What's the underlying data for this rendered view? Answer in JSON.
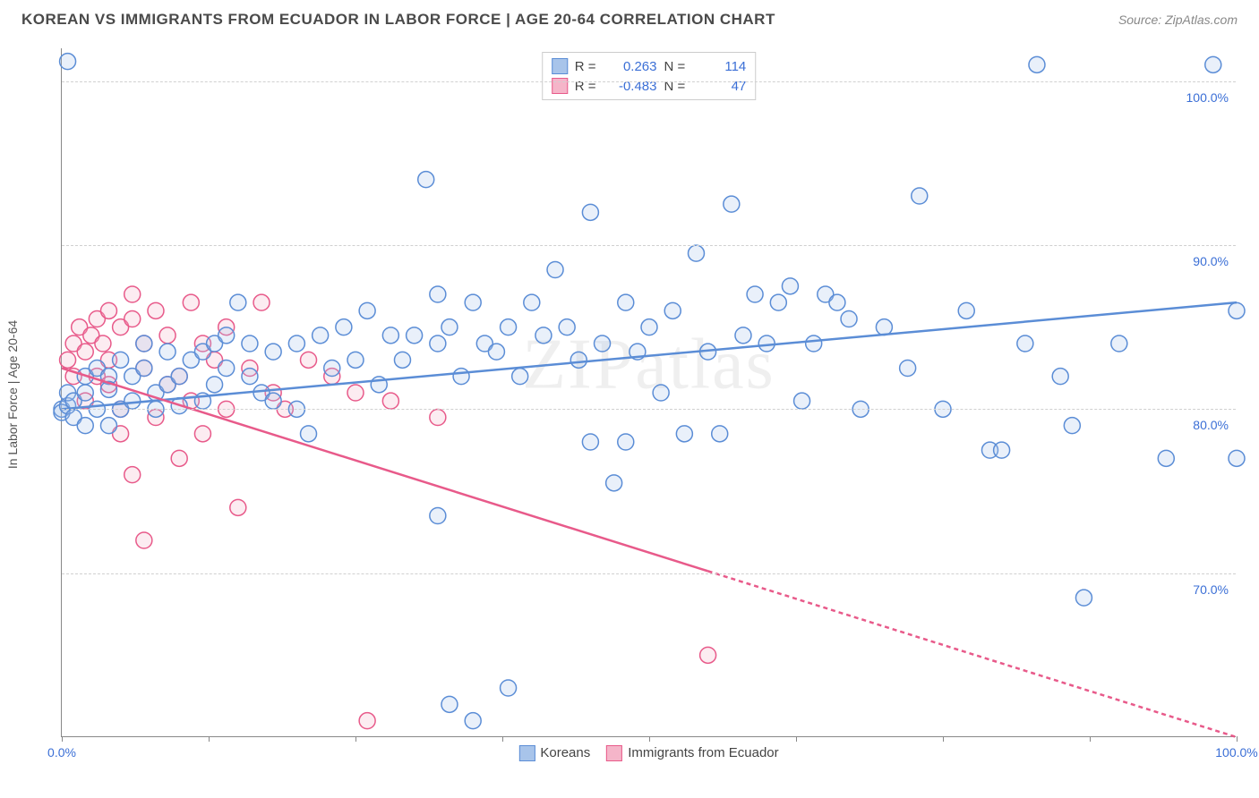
{
  "title": "KOREAN VS IMMIGRANTS FROM ECUADOR IN LABOR FORCE | AGE 20-64 CORRELATION CHART",
  "source": "Source: ZipAtlas.com",
  "watermark": "ZIPatlas",
  "ylabel": "In Labor Force | Age 20-64",
  "chart": {
    "type": "scatter",
    "background_color": "#ffffff",
    "grid_color": "#d0d0d0",
    "axis_color": "#888888",
    "xlim": [
      0,
      100
    ],
    "ylim": [
      60,
      102
    ],
    "xtick_positions": [
      0,
      12.5,
      25,
      37.5,
      50,
      62.5,
      75,
      87.5,
      100
    ],
    "xtick_labels": {
      "0": "0.0%",
      "100": "100.0%"
    },
    "ytick_positions": [
      70,
      80,
      90,
      100
    ],
    "ytick_labels": {
      "70": "70.0%",
      "80": "80.0%",
      "90": "90.0%",
      "100": "100.0%"
    },
    "label_color": "#3b6fd6",
    "label_fontsize": 14,
    "marker_radius": 9,
    "marker_stroke_width": 1.5,
    "marker_fill_opacity": 0.25,
    "trendline_width": 2.5,
    "trendline_dash_extrapolate": "5,4"
  },
  "series": {
    "korean": {
      "label": "Koreans",
      "color": "#5b8dd6",
      "fill": "#a8c4ea",
      "R": "0.263",
      "N": "114",
      "trend": {
        "x1": 0,
        "y1": 80.0,
        "x2": 100,
        "y2": 86.5
      },
      "points": [
        [
          0,
          80.0
        ],
        [
          0,
          79.8
        ],
        [
          0.5,
          80.2
        ],
        [
          0.5,
          81.0
        ],
        [
          0.5,
          101.2
        ],
        [
          1,
          79.5
        ],
        [
          1,
          80.5
        ],
        [
          2,
          81.0
        ],
        [
          2,
          79.0
        ],
        [
          2,
          82.0
        ],
        [
          3,
          82.5
        ],
        [
          3,
          80.0
        ],
        [
          4,
          82.0
        ],
        [
          4,
          81.2
        ],
        [
          4,
          79.0
        ],
        [
          5,
          80.0
        ],
        [
          5,
          83.0
        ],
        [
          6,
          80.5
        ],
        [
          6,
          82.0
        ],
        [
          7,
          82.5
        ],
        [
          7,
          84.0
        ],
        [
          8,
          81.0
        ],
        [
          8,
          80.0
        ],
        [
          9,
          81.5
        ],
        [
          9,
          83.5
        ],
        [
          10,
          80.2
        ],
        [
          10,
          82.0
        ],
        [
          11,
          83.0
        ],
        [
          12,
          83.5
        ],
        [
          12,
          80.5
        ],
        [
          13,
          81.5
        ],
        [
          13,
          84.0
        ],
        [
          14,
          82.5
        ],
        [
          14,
          84.5
        ],
        [
          15,
          86.5
        ],
        [
          16,
          84.0
        ],
        [
          16,
          82.0
        ],
        [
          17,
          81.0
        ],
        [
          18,
          83.5
        ],
        [
          18,
          80.5
        ],
        [
          20,
          84.0
        ],
        [
          20,
          80.0
        ],
        [
          21,
          78.5
        ],
        [
          22,
          84.5
        ],
        [
          23,
          82.5
        ],
        [
          24,
          85.0
        ],
        [
          25,
          83.0
        ],
        [
          26,
          86.0
        ],
        [
          27,
          81.5
        ],
        [
          28,
          84.5
        ],
        [
          29,
          83.0
        ],
        [
          30,
          84.5
        ],
        [
          31,
          94.0
        ],
        [
          32,
          87.0
        ],
        [
          32,
          84.0
        ],
        [
          32,
          73.5
        ],
        [
          33,
          85.0
        ],
        [
          33,
          62.0
        ],
        [
          34,
          82.0
        ],
        [
          35,
          86.5
        ],
        [
          35,
          61.0
        ],
        [
          36,
          84.0
        ],
        [
          37,
          83.5
        ],
        [
          38,
          85.0
        ],
        [
          38,
          63.0
        ],
        [
          39,
          82.0
        ],
        [
          40,
          86.5
        ],
        [
          41,
          84.5
        ],
        [
          42,
          88.5
        ],
        [
          43,
          85.0
        ],
        [
          44,
          83.0
        ],
        [
          45,
          92.0
        ],
        [
          45,
          78.0
        ],
        [
          46,
          84.0
        ],
        [
          47,
          75.5
        ],
        [
          48,
          86.5
        ],
        [
          48,
          78.0
        ],
        [
          49,
          83.5
        ],
        [
          50,
          85.0
        ],
        [
          51,
          81.0
        ],
        [
          52,
          86.0
        ],
        [
          53,
          78.5
        ],
        [
          54,
          89.5
        ],
        [
          55,
          83.5
        ],
        [
          56,
          78.5
        ],
        [
          57,
          92.5
        ],
        [
          58,
          84.5
        ],
        [
          59,
          87.0
        ],
        [
          60,
          84.0
        ],
        [
          61,
          86.5
        ],
        [
          62,
          87.5
        ],
        [
          63,
          80.5
        ],
        [
          64,
          84.0
        ],
        [
          65,
          87.0
        ],
        [
          66,
          86.5
        ],
        [
          67,
          85.5
        ],
        [
          68,
          80.0
        ],
        [
          70,
          85.0
        ],
        [
          72,
          82.5
        ],
        [
          73,
          93.0
        ],
        [
          75,
          80.0
        ],
        [
          77,
          86.0
        ],
        [
          79,
          77.5
        ],
        [
          80,
          77.5
        ],
        [
          82,
          84.0
        ],
        [
          83,
          101.0
        ],
        [
          85,
          82.0
        ],
        [
          86,
          79.0
        ],
        [
          87,
          68.5
        ],
        [
          90,
          84.0
        ],
        [
          94,
          77.0
        ],
        [
          98,
          101.0
        ],
        [
          100,
          77.0
        ],
        [
          100,
          86.0
        ]
      ]
    },
    "ecuador": {
      "label": "Immigrants from Ecuador",
      "color": "#e85a8a",
      "fill": "#f5b5c9",
      "R": "-0.483",
      "N": "47",
      "trend": {
        "x1": 0,
        "y1": 82.5,
        "x2": 100,
        "y2": 60.0
      },
      "trend_solid_until_x": 55,
      "points": [
        [
          0.5,
          83.0
        ],
        [
          1,
          82.0
        ],
        [
          1,
          84.0
        ],
        [
          1.5,
          85.0
        ],
        [
          2,
          80.5
        ],
        [
          2,
          83.5
        ],
        [
          2.5,
          84.5
        ],
        [
          3,
          82.0
        ],
        [
          3,
          85.5
        ],
        [
          3.5,
          84.0
        ],
        [
          4,
          81.5
        ],
        [
          4,
          83.0
        ],
        [
          4,
          86.0
        ],
        [
          5,
          80.0
        ],
        [
          5,
          78.5
        ],
        [
          5,
          85.0
        ],
        [
          6,
          85.5
        ],
        [
          6,
          87.0
        ],
        [
          6,
          76.0
        ],
        [
          7,
          82.5
        ],
        [
          7,
          84.0
        ],
        [
          7,
          72.0
        ],
        [
          8,
          79.5
        ],
        [
          8,
          86.0
        ],
        [
          9,
          81.5
        ],
        [
          9,
          84.5
        ],
        [
          10,
          77.0
        ],
        [
          10,
          82.0
        ],
        [
          11,
          80.5
        ],
        [
          11,
          86.5
        ],
        [
          12,
          84.0
        ],
        [
          12,
          78.5
        ],
        [
          13,
          83.0
        ],
        [
          14,
          80.0
        ],
        [
          14,
          85.0
        ],
        [
          15,
          74.0
        ],
        [
          16,
          82.5
        ],
        [
          17,
          86.5
        ],
        [
          18,
          81.0
        ],
        [
          19,
          80.0
        ],
        [
          21,
          83.0
        ],
        [
          23,
          82.0
        ],
        [
          25,
          81.0
        ],
        [
          26,
          61.0
        ],
        [
          28,
          80.5
        ],
        [
          32,
          79.5
        ],
        [
          55,
          65.0
        ]
      ]
    }
  },
  "legend_top": {
    "r_label": "R  =",
    "n_label": "N  ="
  }
}
